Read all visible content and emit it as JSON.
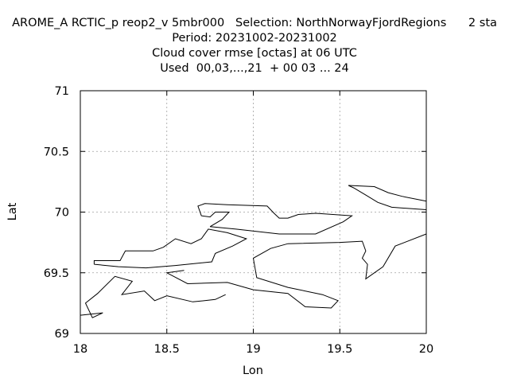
{
  "chart_data": {
    "type": "line",
    "title_lines": [
      "AROME_A RCTIC_p reop2_v 5mbr000   Selection: NorthNorwayFjordRegions      2 sta",
      "Period: 20231002-20231002",
      "Cloud cover rmse [octas] at  06 UTC",
      "Used  00,03,...,21  + 00 03 ... 24"
    ],
    "xlabel": "Lon",
    "ylabel": "Lat",
    "xlim": [
      18,
      20
    ],
    "ylim": [
      69,
      71
    ],
    "xticks": [
      18,
      18.5,
      19,
      19.5,
      20
    ],
    "xtick_labels": [
      "18",
      "18.5",
      "19",
      "19.5",
      "20"
    ],
    "yticks": [
      69,
      69.5,
      70,
      70.5,
      71
    ],
    "ytick_labels": [
      "69",
      "69.5",
      "70",
      "70.5",
      "71"
    ],
    "grid": true,
    "legend": "none",
    "series": [
      {
        "points": [
          [
            18.0,
            69.15
          ],
          [
            18.13,
            69.17
          ],
          [
            18.07,
            69.13
          ],
          [
            18.03,
            69.25
          ],
          [
            18.1,
            69.33
          ],
          [
            18.2,
            69.47
          ],
          [
            18.3,
            69.43
          ],
          [
            18.24,
            69.32
          ],
          [
            18.37,
            69.35
          ],
          [
            18.43,
            69.27
          ],
          [
            18.5,
            69.31
          ],
          [
            18.65,
            69.26
          ],
          [
            18.78,
            69.28
          ],
          [
            18.84,
            69.32
          ]
        ]
      },
      {
        "points": [
          [
            18.6,
            69.52
          ],
          [
            18.5,
            69.5
          ],
          [
            18.62,
            69.41
          ],
          [
            18.85,
            69.42
          ],
          [
            19.0,
            69.36
          ],
          [
            19.2,
            69.33
          ],
          [
            19.3,
            69.22
          ],
          [
            19.45,
            69.21
          ],
          [
            19.49,
            69.27
          ],
          [
            19.4,
            69.32
          ],
          [
            19.2,
            69.38
          ],
          [
            19.02,
            69.46
          ],
          [
            19.0,
            69.62
          ],
          [
            19.1,
            69.7
          ],
          [
            19.2,
            69.74
          ],
          [
            19.5,
            69.75
          ],
          [
            19.63,
            69.76
          ],
          [
            19.65,
            69.68
          ],
          [
            19.63,
            69.62
          ],
          [
            19.66,
            69.57
          ],
          [
            19.65,
            69.45
          ],
          [
            19.75,
            69.55
          ],
          [
            19.82,
            69.72
          ],
          [
            20.0,
            69.82
          ]
        ]
      },
      {
        "points": [
          [
            18.08,
            69.57
          ],
          [
            18.08,
            69.6
          ],
          [
            18.23,
            69.6
          ],
          [
            18.26,
            69.68
          ],
          [
            18.42,
            69.68
          ],
          [
            18.48,
            69.71
          ],
          [
            18.55,
            69.78
          ],
          [
            18.64,
            69.74
          ],
          [
            18.7,
            69.78
          ],
          [
            18.74,
            69.86
          ],
          [
            18.85,
            69.83
          ],
          [
            18.96,
            69.78
          ],
          [
            18.88,
            69.72
          ],
          [
            18.78,
            69.66
          ],
          [
            18.76,
            69.59
          ],
          [
            18.55,
            69.56
          ],
          [
            18.38,
            69.54
          ],
          [
            18.22,
            69.55
          ],
          [
            18.08,
            69.57
          ]
        ]
      },
      {
        "points": [
          [
            18.75,
            69.88
          ],
          [
            18.9,
            69.86
          ],
          [
            19.15,
            69.82
          ],
          [
            19.36,
            69.82
          ],
          [
            19.52,
            69.92
          ],
          [
            19.57,
            69.97
          ],
          [
            19.36,
            69.99
          ],
          [
            19.26,
            69.98
          ],
          [
            19.2,
            69.95
          ],
          [
            19.15,
            69.95
          ],
          [
            19.12,
            69.99
          ],
          [
            19.08,
            70.05
          ],
          [
            18.85,
            70.06
          ],
          [
            18.72,
            70.07
          ],
          [
            18.68,
            70.05
          ],
          [
            18.7,
            69.97
          ],
          [
            18.75,
            69.96
          ],
          [
            18.78,
            70.0
          ],
          [
            18.86,
            70.0
          ],
          [
            18.82,
            69.94
          ],
          [
            18.75,
            69.88
          ]
        ]
      },
      {
        "points": [
          [
            19.55,
            70.22
          ],
          [
            19.7,
            70.21
          ],
          [
            19.78,
            70.16
          ],
          [
            19.86,
            70.13
          ],
          [
            20.0,
            70.09
          ]
        ]
      },
      {
        "points": [
          [
            20.0,
            70.02
          ],
          [
            19.8,
            70.04
          ],
          [
            19.72,
            70.08
          ],
          [
            19.65,
            70.14
          ],
          [
            19.58,
            70.2
          ],
          [
            19.55,
            70.22
          ]
        ]
      }
    ]
  }
}
